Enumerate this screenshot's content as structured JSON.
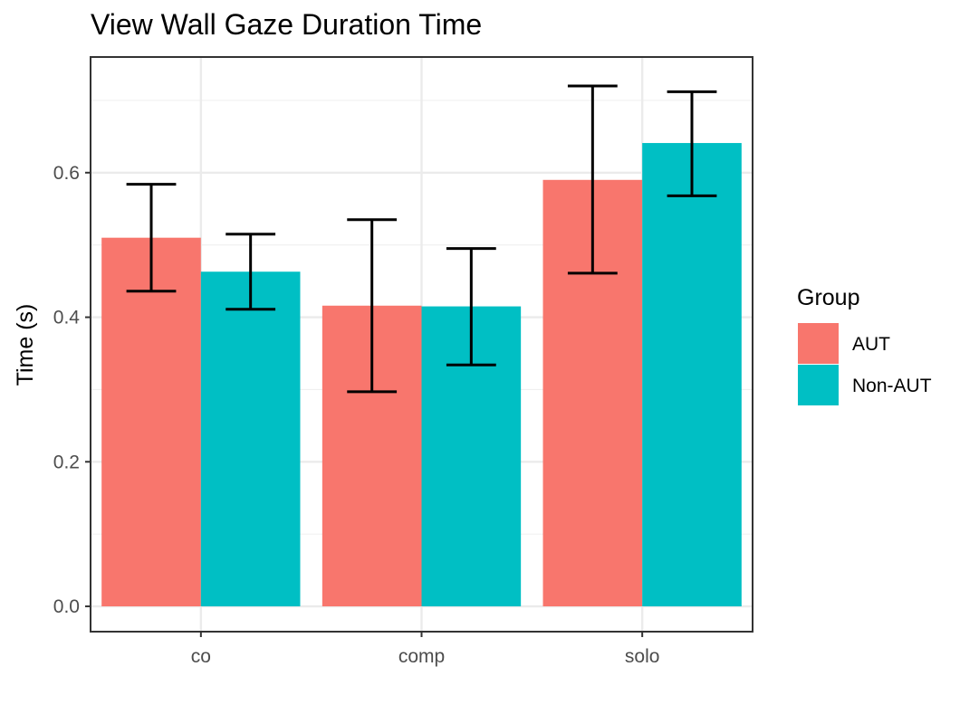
{
  "chart_data": {
    "type": "bar",
    "title": "View Wall Gaze Duration Time",
    "xlabel": "",
    "ylabel": "Time (s)",
    "categories": [
      "co",
      "comp",
      "solo"
    ],
    "ylim": [
      -0.035,
      0.76
    ],
    "yticks": [
      "0.0",
      "0.2",
      "0.4",
      "0.6"
    ],
    "ytick_values": [
      0.0,
      0.2,
      0.4,
      0.6
    ],
    "grid": true,
    "legend": {
      "title": "Group",
      "position": "right"
    },
    "series": [
      {
        "name": "AUT",
        "color": "#F8766D",
        "values": [
          0.51,
          0.416,
          0.59
        ],
        "error_low": [
          0.436,
          0.297,
          0.461
        ],
        "error_high": [
          0.584,
          0.535,
          0.72
        ]
      },
      {
        "name": "Non-AUT",
        "color": "#00BFC4",
        "values": [
          0.463,
          0.415,
          0.641
        ],
        "error_low": [
          0.411,
          0.334,
          0.568
        ],
        "error_high": [
          0.515,
          0.495,
          0.712
        ]
      }
    ]
  }
}
